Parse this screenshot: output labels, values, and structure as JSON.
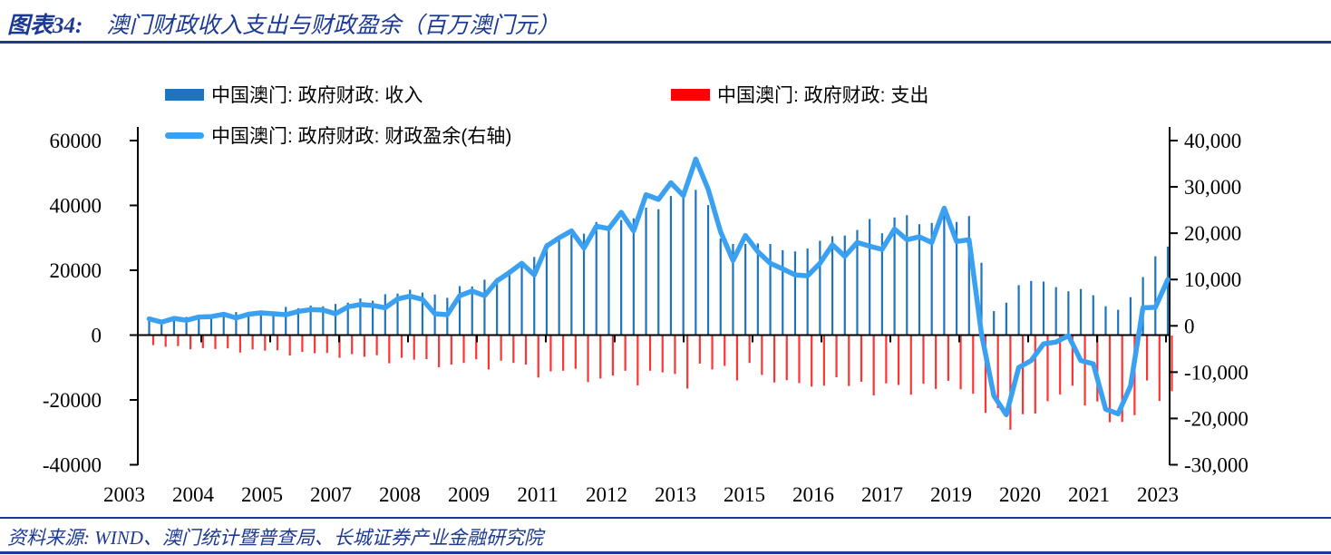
{
  "title": {
    "prefix": "图表34:",
    "text": "澳门财政收入支出与财政盈余（百万澳门元）"
  },
  "source": {
    "text": "资料来源: WIND、澳门统计暨普查局、长城证券产业金融研究院"
  },
  "colors": {
    "accent_navy": "#1C3A94",
    "revenue_bar": "#1F74BE",
    "expenditure_bar": "#FF3333",
    "surplus_line": "#3AA1F2",
    "axis_black": "#000000"
  },
  "legend": [
    {
      "label": "中国澳门: 政府财政: 收入",
      "color": "#1F74BE",
      "type": "bar"
    },
    {
      "label": "中国澳门: 政府财政: 支出",
      "color": "#FF0000",
      "type": "bar"
    },
    {
      "label": "中国澳门: 政府财政: 财政盈余(右轴)",
      "color": "#3AA1F2",
      "type": "line"
    }
  ],
  "chart_data": {
    "type": "bar+line combo",
    "frequency": "quarterly",
    "x_start": "2003Q1",
    "x_end": "2023Q3",
    "x_tick_labels": [
      "2003",
      "2004",
      "2005",
      "2007",
      "2008",
      "2009",
      "2011",
      "2012",
      "2013",
      "2015",
      "2016",
      "2017",
      "2019",
      "2020",
      "2021",
      "2023"
    ],
    "left_axis": {
      "ylim": [
        -40000,
        60000
      ],
      "ticks": [
        "60000",
        "40000",
        "20000",
        "0",
        "-20000",
        "-40000"
      ]
    },
    "right_axis": {
      "ylim": [
        -30000,
        40000
      ],
      "ticks": [
        "40,000",
        "30,000",
        "20,000",
        "10,000",
        "0",
        "-10,000",
        "-20,000",
        "-30,000"
      ]
    },
    "grid": "off",
    "legend_position": "top",
    "series": [
      {
        "name": "中国澳门: 政府财政: 收入",
        "axis": "left",
        "type": "bar",
        "values": [
          4600,
          4400,
          5000,
          5600,
          5900,
          6300,
          6600,
          7100,
          6900,
          7600,
          7300,
          8700,
          8300,
          9100,
          8900,
          9600,
          10000,
          11300,
          10600,
          12600,
          12800,
          14000,
          13100,
          12500,
          11500,
          15100,
          15000,
          17100,
          17600,
          20100,
          22600,
          24100,
          28400,
          30000,
          30900,
          31300,
          34900,
          33500,
          35500,
          36000,
          39300,
          38800,
          42900,
          44600,
          44800,
          40100,
          29800,
          28100,
          28100,
          28300,
          28100,
          26200,
          25800,
          26700,
          29100,
          30500,
          30700,
          32400,
          35800,
          31400,
          36300,
          37000,
          34200,
          34600,
          39500,
          34900,
          36700,
          22300,
          7400,
          10000,
          15400,
          16700,
          16500,
          14800,
          13500,
          14200,
          12300,
          8900,
          7800,
          11700,
          17900,
          24300,
          27300
        ]
      },
      {
        "name": "中国澳门: 政府财政: 支出",
        "axis": "left",
        "type": "bar",
        "values": [
          -3100,
          -3600,
          -3400,
          -4400,
          -4000,
          -4300,
          -4100,
          -5400,
          -4400,
          -4800,
          -4700,
          -6300,
          -5200,
          -5600,
          -5500,
          -7000,
          -5900,
          -6700,
          -6200,
          -8700,
          -7000,
          -7600,
          -7400,
          -9900,
          -9100,
          -8600,
          -7500,
          -10600,
          -7900,
          -8600,
          -9100,
          -13100,
          -11200,
          -11000,
          -10400,
          -14500,
          -13400,
          -12500,
          -11000,
          -15500,
          -11000,
          -11500,
          -12000,
          -16500,
          -8800,
          -10600,
          -9500,
          -14000,
          -8600,
          -12300,
          -14600,
          -13900,
          -14800,
          -15900,
          -15600,
          -13000,
          -15700,
          -14400,
          -18600,
          -14900,
          -15400,
          -18400,
          -15000,
          -16600,
          -14100,
          -16700,
          -18100,
          -24000,
          -22500,
          -29200,
          -24400,
          -24200,
          -20400,
          -18300,
          -15600,
          -21700,
          -20500,
          -26900,
          -26800,
          -24700,
          -14000,
          -20300,
          -17300
        ]
      },
      {
        "name": "中国澳门: 政府财政: 财政盈余(右轴)",
        "axis": "right",
        "type": "line",
        "values": [
          1500,
          800,
          1600,
          1200,
          1900,
          2000,
          2500,
          1700,
          2500,
          2800,
          2600,
          2400,
          3100,
          3500,
          3400,
          2600,
          4100,
          4600,
          4400,
          3900,
          5800,
          6400,
          5700,
          2600,
          2400,
          6500,
          7500,
          6500,
          9700,
          11500,
          13500,
          11000,
          17200,
          19000,
          20500,
          16800,
          21500,
          21000,
          24500,
          20500,
          28300,
          27300,
          30900,
          28100,
          36000,
          29500,
          20300,
          14100,
          19500,
          16000,
          13500,
          12300,
          11000,
          10800,
          13500,
          17500,
          15000,
          18000,
          17200,
          16500,
          20900,
          18600,
          19200,
          18000,
          25400,
          18200,
          18600,
          -1700,
          -15100,
          -19200,
          -9000,
          -7500,
          -3900,
          -3500,
          -2100,
          -7500,
          -8200,
          -18000,
          -19000,
          -13000,
          3900,
          4000,
          10000
        ]
      }
    ]
  }
}
